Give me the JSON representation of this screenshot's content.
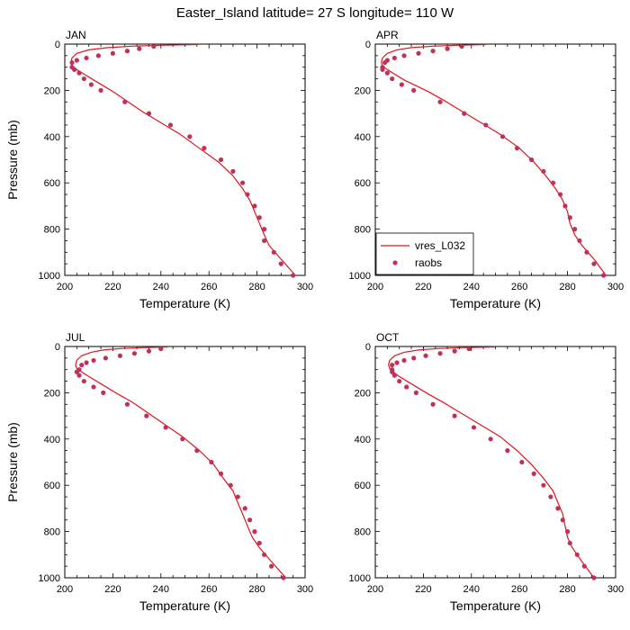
{
  "title": "Easter_Island  latitude= 27 S longitude= 110 W",
  "colors": {
    "model": "#e0161b",
    "obs": "#c2305a"
  },
  "legend": {
    "model_label": "vres_L032",
    "obs_label": "raobs",
    "placement": "lower-left of APR panel"
  },
  "chart_data": [
    {
      "type": "line",
      "panel": "JAN",
      "xlabel": "Temperature (K)",
      "ylabel": "Pressure (mb)",
      "xlim": [
        200,
        300
      ],
      "ylim": [
        1000,
        0
      ],
      "xticks": [
        200,
        220,
        240,
        260,
        280,
        300
      ],
      "yticks": [
        0,
        200,
        400,
        600,
        800,
        1000
      ],
      "series": [
        {
          "name": "vres_L032",
          "kind": "line",
          "t": [
            255,
            240,
            228,
            218,
            210,
            205,
            203,
            202.5,
            203,
            205,
            208,
            212,
            216,
            220,
            225,
            232,
            240,
            248,
            256,
            264,
            270,
            274,
            277,
            279,
            281,
            283,
            285,
            290,
            296
          ],
          "p": [
            2,
            5,
            9,
            15,
            25,
            40,
            60,
            80,
            95,
            110,
            130,
            155,
            180,
            205,
            240,
            290,
            340,
            390,
            450,
            510,
            570,
            625,
            675,
            725,
            775,
            825,
            870,
            930,
            1000
          ]
        },
        {
          "name": "raobs",
          "kind": "points",
          "t": [
            237,
            231,
            226,
            220,
            214,
            209,
            205,
            203,
            203,
            204,
            206,
            208,
            211,
            215,
            225,
            235,
            244,
            252,
            258,
            265,
            270,
            274,
            276,
            279,
            281,
            283,
            283,
            287,
            290,
            295
          ],
          "p": [
            10,
            20,
            30,
            40,
            50,
            60,
            70,
            80,
            100,
            110,
            125,
            150,
            175,
            200,
            250,
            300,
            350,
            400,
            450,
            500,
            550,
            600,
            650,
            700,
            750,
            800,
            850,
            900,
            950,
            1000
          ]
        }
      ]
    },
    {
      "type": "line",
      "panel": "APR",
      "xlabel": "Temperature (K)",
      "ylabel": "",
      "xlim": [
        200,
        300
      ],
      "ylim": [
        1000,
        0
      ],
      "xticks": [
        200,
        220,
        240,
        260,
        280,
        300
      ],
      "yticks": [
        0,
        200,
        400,
        600,
        800,
        1000
      ],
      "series": [
        {
          "name": "vres_L032",
          "kind": "line",
          "t": [
            246,
            234,
            224,
            215,
            209,
            205,
            203,
            202.5,
            203,
            205,
            208,
            212,
            217,
            222,
            228,
            236,
            244,
            252,
            260,
            266,
            271,
            275,
            278,
            280,
            281,
            283,
            286,
            291,
            296
          ],
          "p": [
            2,
            5,
            9,
            15,
            25,
            40,
            60,
            80,
            95,
            110,
            130,
            155,
            180,
            205,
            240,
            290,
            340,
            390,
            450,
            510,
            570,
            625,
            675,
            725,
            775,
            825,
            870,
            930,
            1000
          ]
        },
        {
          "name": "raobs",
          "kind": "points",
          "t": [
            236,
            230,
            224,
            218,
            212,
            208,
            205,
            204,
            203,
            203,
            205,
            207,
            211,
            216,
            227,
            237,
            246,
            253,
            259,
            265,
            270,
            274,
            277,
            279,
            281,
            283,
            285,
            288,
            291,
            295
          ],
          "p": [
            10,
            20,
            30,
            40,
            50,
            60,
            70,
            80,
            100,
            110,
            125,
            150,
            175,
            200,
            250,
            300,
            350,
            400,
            450,
            500,
            550,
            600,
            650,
            700,
            750,
            800,
            850,
            900,
            950,
            1000
          ]
        }
      ]
    },
    {
      "type": "line",
      "panel": "JUL",
      "xlabel": "Temperature (K)",
      "ylabel": "Pressure (mb)",
      "xlim": [
        200,
        300
      ],
      "ylim": [
        1000,
        0
      ],
      "xticks": [
        200,
        220,
        240,
        260,
        280,
        300
      ],
      "yticks": [
        0,
        200,
        400,
        600,
        800,
        1000
      ],
      "series": [
        {
          "name": "vres_L032",
          "kind": "line",
          "t": [
            243,
            232,
            223,
            216,
            211,
            207,
            205,
            204.5,
            205,
            207,
            210,
            214,
            218,
            222,
            228,
            235,
            242,
            249,
            256,
            262,
            266,
            270,
            272,
            274,
            276,
            278,
            281,
            286,
            292
          ],
          "p": [
            2,
            5,
            9,
            15,
            25,
            40,
            60,
            80,
            95,
            110,
            130,
            155,
            180,
            205,
            240,
            290,
            340,
            390,
            450,
            510,
            570,
            625,
            675,
            725,
            775,
            825,
            870,
            930,
            1000
          ]
        },
        {
          "name": "raobs",
          "kind": "points",
          "t": [
            240,
            235,
            229,
            223,
            217,
            212,
            209,
            207,
            206,
            205,
            206,
            208,
            212,
            216,
            226,
            234,
            242,
            249,
            255,
            261,
            265,
            269,
            272,
            275,
            277,
            279,
            281,
            283,
            286,
            291
          ],
          "p": [
            10,
            20,
            30,
            40,
            50,
            60,
            70,
            80,
            100,
            110,
            125,
            150,
            175,
            200,
            250,
            300,
            350,
            400,
            450,
            500,
            550,
            600,
            650,
            700,
            750,
            800,
            850,
            900,
            950,
            1000
          ]
        }
      ]
    },
    {
      "type": "line",
      "panel": "OCT",
      "xlabel": "Temperature (K)",
      "ylabel": "",
      "xlim": [
        200,
        300
      ],
      "ylim": [
        1000,
        0
      ],
      "xticks": [
        200,
        220,
        240,
        260,
        280,
        300
      ],
      "yticks": [
        0,
        200,
        400,
        600,
        800,
        1000
      ],
      "series": [
        {
          "name": "vres_L032",
          "kind": "line",
          "t": [
            250,
            236,
            226,
            218,
            212,
            208,
            206,
            205.5,
            206,
            207.5,
            210,
            214,
            218,
            222,
            228,
            236,
            244,
            252,
            259,
            265,
            270,
            274,
            276,
            278,
            279,
            280,
            282,
            286,
            291
          ],
          "p": [
            2,
            5,
            9,
            15,
            25,
            40,
            60,
            80,
            95,
            110,
            130,
            155,
            180,
            205,
            240,
            290,
            340,
            390,
            450,
            510,
            570,
            625,
            675,
            725,
            775,
            825,
            870,
            930,
            1000
          ]
        },
        {
          "name": "raobs",
          "kind": "points",
          "t": [
            239,
            233,
            227,
            221,
            216,
            212,
            209,
            207,
            207,
            207,
            208,
            210,
            213,
            217,
            224,
            233,
            241,
            248,
            255,
            261,
            266,
            270,
            273,
            276,
            278,
            280,
            281,
            284,
            287,
            291
          ],
          "p": [
            10,
            20,
            30,
            40,
            50,
            60,
            70,
            80,
            100,
            110,
            125,
            150,
            175,
            200,
            250,
            300,
            350,
            400,
            450,
            500,
            550,
            600,
            650,
            700,
            750,
            800,
            850,
            900,
            950,
            1000
          ]
        }
      ]
    }
  ]
}
